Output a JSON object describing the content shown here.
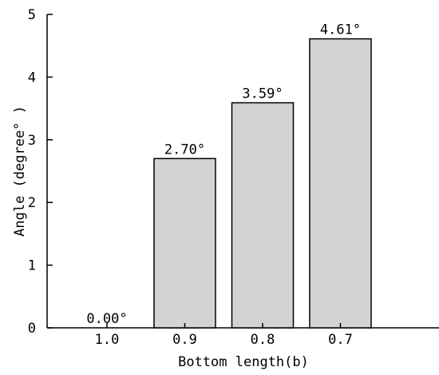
{
  "chart_data": {
    "type": "bar",
    "title": "",
    "xlabel": "Bottom length(b)",
    "ylabel": "Angle (degree° )",
    "categories": [
      "1.0",
      "0.9",
      "0.8",
      "0.7"
    ],
    "values": [
      0.0,
      2.7,
      3.59,
      4.61
    ],
    "data_labels": [
      "0.00°",
      "2.70°",
      "3.59°",
      "4.61°"
    ],
    "ylim": [
      0,
      5
    ],
    "yticks": [
      "0",
      "1",
      "2",
      "3",
      "4",
      "5"
    ],
    "grid": false,
    "legend": "none",
    "bar_color": "#d3d3d3",
    "edge_color": "#000000"
  }
}
